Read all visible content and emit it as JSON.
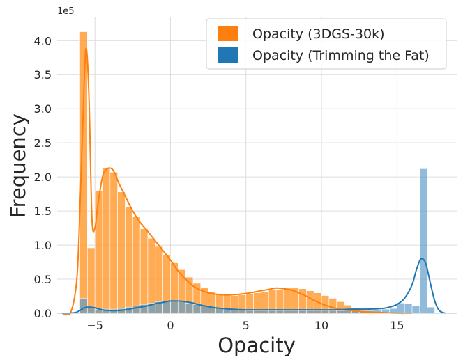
{
  "chart_data": {
    "type": "histogram",
    "xlabel": "Opacity",
    "ylabel": "Frequency",
    "y_offset_label": "1e5",
    "xlim": [
      -7.5,
      19
    ],
    "ylim": [
      0,
      4.35
    ],
    "y_scale": 100000,
    "xticks": [
      -5,
      0,
      5,
      10,
      15
    ],
    "xtick_labels": [
      "−5",
      "0",
      "5",
      "10",
      "15"
    ],
    "yticks": [
      0,
      0.5,
      1.0,
      1.5,
      2.0,
      2.5,
      3.0,
      3.5,
      4.0
    ],
    "ytick_labels": [
      "0.0",
      "0.5",
      "1.0",
      "1.5",
      "2.0",
      "2.5",
      "3.0",
      "3.5",
      "4.0"
    ],
    "grid": true,
    "legend_position": "top-right",
    "bin_start": -6.0,
    "bin_width": 0.5,
    "series": [
      {
        "name": "Opacity (3DGS-30k)",
        "color": "#ff7f0e",
        "bar_color": "#ff9a2e",
        "values": [
          4.13,
          0.96,
          1.8,
          2.13,
          2.07,
          1.78,
          1.56,
          1.42,
          1.24,
          1.1,
          0.98,
          0.86,
          0.74,
          0.64,
          0.53,
          0.44,
          0.38,
          0.32,
          0.29,
          0.27,
          0.26,
          0.27,
          0.28,
          0.3,
          0.32,
          0.34,
          0.35,
          0.37,
          0.37,
          0.36,
          0.33,
          0.3,
          0.26,
          0.22,
          0.17,
          0.12,
          0.08,
          0.05,
          0.03
        ],
        "kde_x": [
          -7.2,
          -6.6,
          -6.2,
          -6.0,
          -5.8,
          -5.6,
          -5.4,
          -5.2,
          -5.0,
          -4.8,
          -4.5,
          -4.2,
          -3.8,
          -3.4,
          -3.0,
          -2.5,
          -2.0,
          -1.5,
          -1.0,
          -0.5,
          0.0,
          0.5,
          1.0,
          1.5,
          2.0,
          2.5,
          3.0,
          3.5,
          4.0,
          5.0,
          6.0,
          6.5,
          7.0,
          7.5,
          8.0,
          8.5,
          9.0,
          9.5,
          10.0,
          10.5,
          11.0,
          11.5,
          12.0,
          12.5,
          13.0,
          14.0,
          15.0,
          16.0
        ],
        "kde_y": [
          0.0,
          0.02,
          0.5,
          1.5,
          2.8,
          3.88,
          3.2,
          1.4,
          1.26,
          1.6,
          2.0,
          2.12,
          2.1,
          1.9,
          1.72,
          1.5,
          1.33,
          1.2,
          1.06,
          0.92,
          0.78,
          0.62,
          0.5,
          0.4,
          0.34,
          0.3,
          0.28,
          0.27,
          0.27,
          0.29,
          0.33,
          0.35,
          0.37,
          0.36,
          0.34,
          0.3,
          0.25,
          0.19,
          0.14,
          0.1,
          0.07,
          0.05,
          0.04,
          0.03,
          0.02,
          0.01,
          0.0,
          0.0
        ]
      },
      {
        "name": "Opacity (Trimming the Fat)",
        "color": "#1f77b4",
        "bar_color": "#5b9bc8",
        "values": [
          0.22,
          0.08,
          0.06,
          0.06,
          0.06,
          0.07,
          0.09,
          0.11,
          0.13,
          0.15,
          0.17,
          0.18,
          0.18,
          0.17,
          0.15,
          0.13,
          0.11,
          0.09,
          0.08,
          0.06,
          0.05,
          0.05,
          0.04,
          0.04,
          0.04,
          0.04,
          0.04,
          0.04,
          0.04,
          0.04,
          0.04,
          0.04,
          0.04,
          0.04,
          0.04,
          0.04,
          0.04,
          0.04,
          0.04,
          0.05,
          0.06,
          0.07,
          0.15,
          0.14,
          0.11,
          2.12,
          0.09
        ],
        "kde_x": [
          -7.2,
          -6.8,
          -6.3,
          -6.0,
          -5.7,
          -5.4,
          -5.0,
          -4.5,
          -4.0,
          -3.5,
          -3.0,
          -2.5,
          -2.0,
          -1.5,
          -1.0,
          -0.5,
          0.0,
          0.5,
          1.0,
          1.5,
          2.0,
          3.0,
          4.0,
          5.0,
          6.0,
          7.0,
          8.0,
          9.0,
          10.0,
          11.0,
          12.0,
          13.0,
          14.0,
          14.5,
          15.0,
          15.5,
          16.0,
          16.3,
          16.6,
          16.9,
          17.2,
          17.5,
          17.8,
          18.2
        ],
        "kde_y": [
          0.0,
          0.0,
          0.01,
          0.04,
          0.08,
          0.09,
          0.08,
          0.05,
          0.04,
          0.04,
          0.05,
          0.07,
          0.09,
          0.11,
          0.14,
          0.16,
          0.18,
          0.18,
          0.17,
          0.15,
          0.12,
          0.08,
          0.06,
          0.05,
          0.05,
          0.05,
          0.05,
          0.05,
          0.05,
          0.05,
          0.06,
          0.06,
          0.07,
          0.09,
          0.13,
          0.22,
          0.42,
          0.65,
          0.8,
          0.73,
          0.45,
          0.18,
          0.04,
          0.0
        ]
      }
    ]
  }
}
